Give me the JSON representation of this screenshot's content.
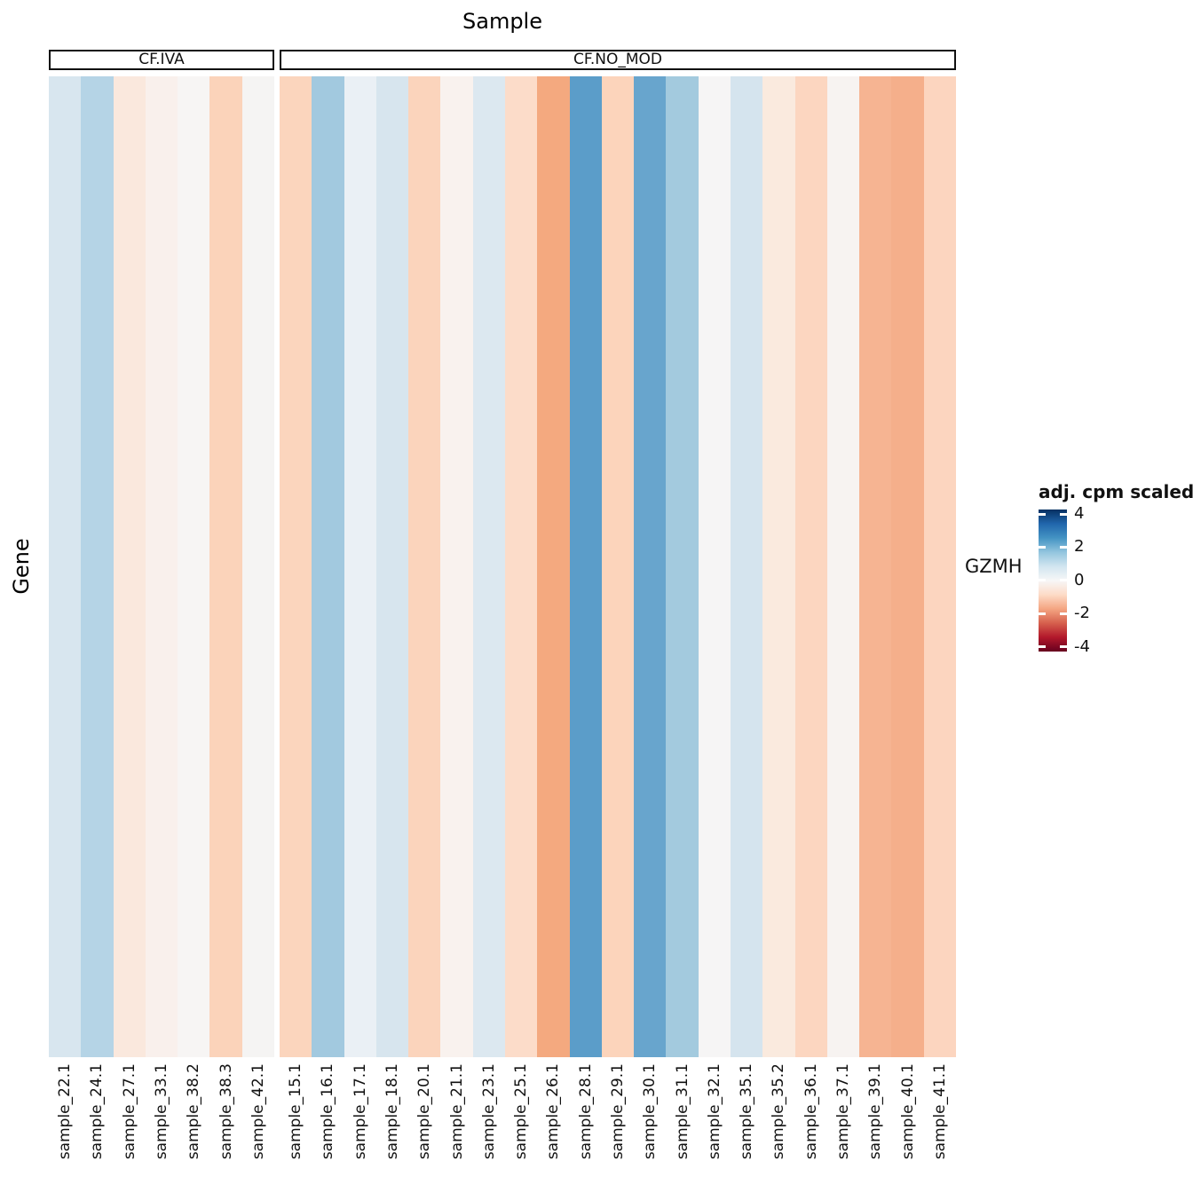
{
  "figure": {
    "title": "Sample",
    "ylabel": "Gene",
    "row_label": "GZMH"
  },
  "legend": {
    "title": "adj. cpm scaled",
    "ticks": [
      "4",
      "2",
      "0",
      "-2",
      "-4"
    ]
  },
  "chart_data": {
    "type": "heatmap",
    "title": "Sample",
    "xlabel": "Sample",
    "ylabel": "Gene",
    "rows": [
      "GZMH"
    ],
    "colormap": "RdBu (blue = high, red = low)",
    "legend_title": "adj. cpm scaled",
    "legend_ticks": [
      4,
      2,
      0,
      -2,
      -4
    ],
    "value_range": [
      -4.5,
      4.5
    ],
    "column_groups": [
      {
        "label": "CF.IVA",
        "samples": [
          "sample_22.1",
          "sample_24.1",
          "sample_27.1",
          "sample_33.1",
          "sample_38.2",
          "sample_38.3",
          "sample_42.1"
        ],
        "values": [
          0.7,
          1.3,
          -0.45,
          -0.15,
          0.05,
          -1.05,
          0.05
        ],
        "cell_colors": [
          "#d8e6ef",
          "#b5d4e6",
          "#fae8dd",
          "#f9f0ec",
          "#f7f5f4",
          "#fbd3ba",
          "#f5f4f3"
        ]
      },
      {
        "label": "CF.NO_MOD",
        "samples": [
          "sample_15.1",
          "sample_16.1",
          "sample_17.1",
          "sample_18.1",
          "sample_20.1",
          "sample_21.1",
          "sample_23.1",
          "sample_25.1",
          "sample_26.1",
          "sample_28.1",
          "sample_29.1",
          "sample_30.1",
          "sample_31.1",
          "sample_32.1",
          "sample_35.1",
          "sample_35.2",
          "sample_36.1",
          "sample_37.1",
          "sample_39.1",
          "sample_40.1",
          "sample_41.1"
        ],
        "values": [
          -1.0,
          1.7,
          0.3,
          0.75,
          -1.0,
          -0.1,
          0.6,
          -0.8,
          -1.9,
          2.9,
          -1.0,
          2.6,
          1.6,
          0.05,
          0.8,
          -0.35,
          -0.9,
          -0.05,
          -1.6,
          -1.75,
          -0.95
        ],
        "cell_colors": [
          "#fbd5bd",
          "#a2c9df",
          "#eaf0f5",
          "#d7e5ee",
          "#fbd4bc",
          "#f9f2ee",
          "#dce8f0",
          "#fcdcc9",
          "#f4a97f",
          "#5b9dc9",
          "#fcd4bb",
          "#68a5cd",
          "#a3cade",
          "#f6f5f5",
          "#d5e4ee",
          "#faeade",
          "#fcd6c0",
          "#f7f3f1",
          "#f6b492",
          "#f5af8b",
          "#fcd5bf"
        ]
      }
    ]
  }
}
